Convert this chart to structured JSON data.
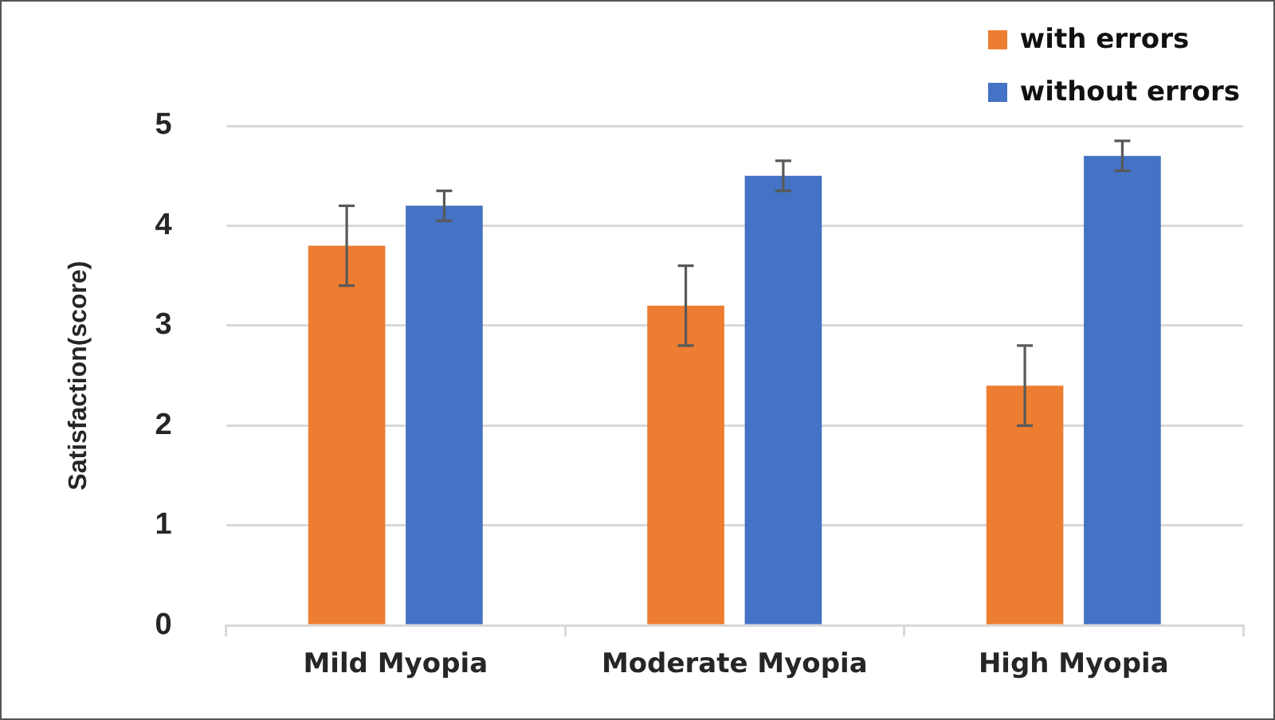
{
  "chart_data": {
    "type": "bar",
    "categories": [
      "Mild Myopia",
      "Moderate Myopia",
      "High Myopia"
    ],
    "series": [
      {
        "name": "with errors",
        "color": "#ed7d31",
        "values": [
          3.8,
          3.2,
          2.4
        ],
        "errors": [
          0.4,
          0.4,
          0.4
        ]
      },
      {
        "name": "without errors",
        "color": "#4472c4",
        "values": [
          4.2,
          4.5,
          4.7
        ],
        "errors": [
          0.15,
          0.15,
          0.15
        ]
      }
    ],
    "ylabel": "Satisfaction(score)",
    "ylim": [
      0,
      5
    ],
    "yticks": [
      0,
      1,
      2,
      3,
      4,
      5
    ],
    "grid": "y",
    "legend": "top right"
  }
}
